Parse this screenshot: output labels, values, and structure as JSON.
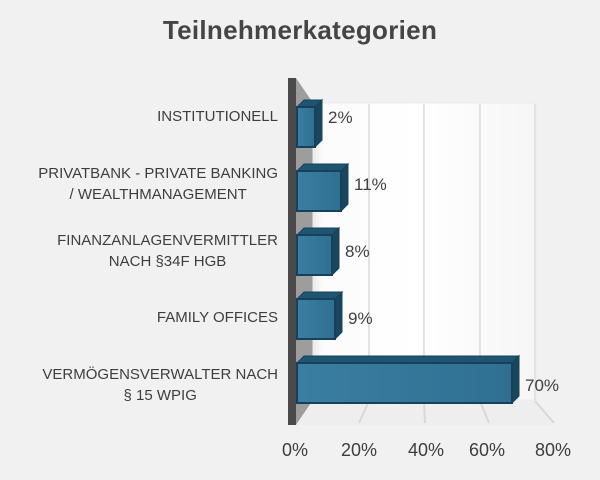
{
  "page": {
    "background": "#f1f1f1"
  },
  "chart_data": {
    "type": "bar",
    "orientation": "horizontal",
    "style": "3d",
    "title": "Teilnehmerkategorien",
    "categories": [
      "INSTITUTIONELL",
      "PRIVATBANK - PRIVATE BANKING / WEALTHMANAGEMENT",
      "FINANZANLAGENVERMITTLER NACH §34F HGB",
      "FAMILY OFFICES",
      "VERMÖGENSVERWALTER NACH § 15 WPIG"
    ],
    "categories_display": [
      "INSTITUTIONELL",
      "PRIVATBANK - PRIVATE BANKING\n/ WEALTHMANAGEMENT",
      "FINANZANLAGENVERMITTLER\nNACH §34F HGB",
      "FAMILY OFFICES",
      "VERMÖGENSVERWALTER NACH\n§ 15 WPIG"
    ],
    "values": [
      2,
      11,
      8,
      9,
      70
    ],
    "data_labels": [
      "2%",
      "11%",
      "8%",
      "9%",
      "70%"
    ],
    "x_ticks": [
      "0%",
      "20%",
      "40%",
      "60%",
      "80%"
    ],
    "xlim": [
      0,
      80
    ],
    "xlabel": "",
    "ylabel": "",
    "grid": true,
    "legend": false,
    "colors": {
      "bar_front_light": "#3A7EA2",
      "bar_front_dark": "#2F7092",
      "bar_top": "#1F5572",
      "bar_side": "#19465F",
      "bar_border": "#17415A",
      "wall_edge": "#4A4A4A",
      "wall_side": "#9D9D9D",
      "wall_back": "#FFFFFF",
      "gridline": "#E3E3E3",
      "floor_tick": "#D8D8D8",
      "text": "#3E3E3E"
    }
  }
}
